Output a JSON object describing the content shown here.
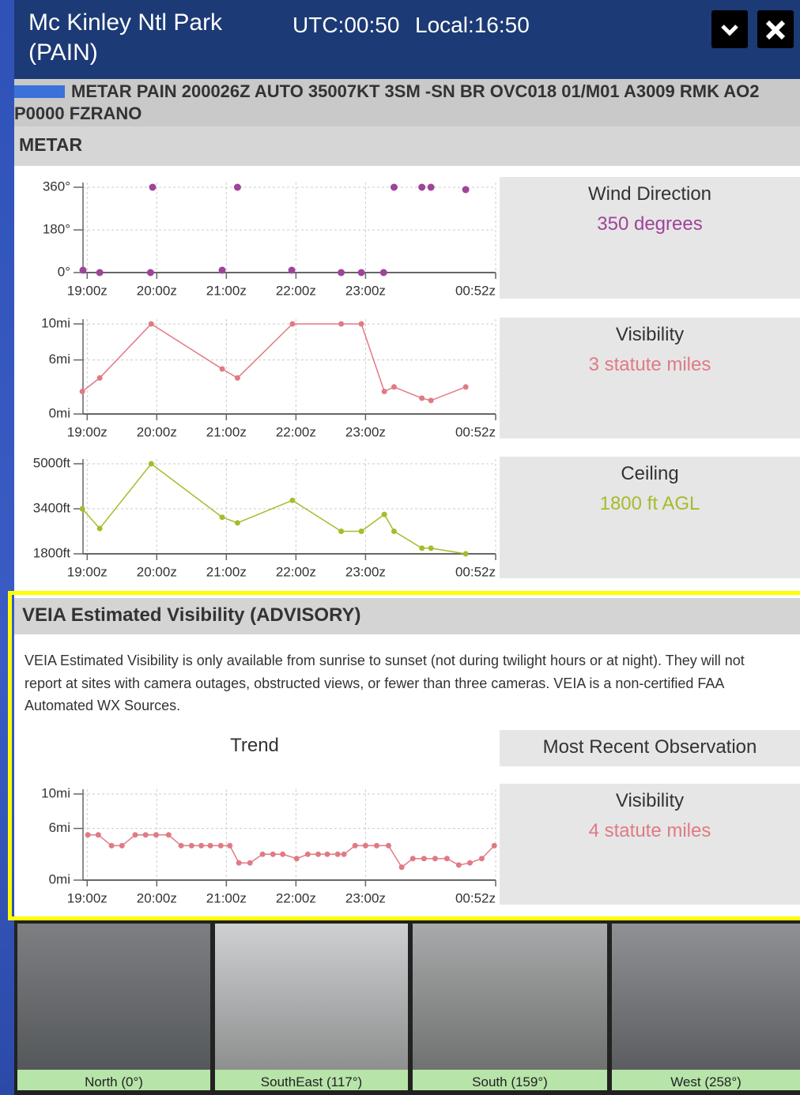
{
  "header": {
    "title": "Mc Kinley Ntl Park (PAIN)",
    "utc": "UTC:00:50",
    "local": "Local:16:50"
  },
  "metar_text": "METAR PAIN 200026Z AUTO 35007KT 3SM -SN BR OVC018 01/M01 A3009 RMK AO2 P0000 FZRANO",
  "metar_section": "METAR",
  "charts": [
    {
      "type": "scatter",
      "color": "#a0439a",
      "x": [
        18.94,
        19.18,
        19.91,
        19.94,
        20.94,
        21.16,
        21.94,
        22.65,
        22.94,
        23.26,
        23.41,
        23.81,
        23.94,
        24.44
      ],
      "values": [
        10,
        0,
        0,
        360,
        10,
        360,
        10,
        0,
        0,
        0,
        360,
        360,
        360,
        350
      ],
      "xlim": [
        18.94,
        24.87
      ],
      "ylim": [
        0,
        360
      ],
      "xticks": [
        {
          "value": 19,
          "label": "19:00z"
        },
        {
          "value": 20,
          "label": "20:00z"
        },
        {
          "value": 21,
          "label": "21:00z"
        },
        {
          "value": 22,
          "label": "22:00z"
        },
        {
          "value": 23,
          "label": "23:00z"
        },
        {
          "value": 24.87,
          "label": "00:52z"
        }
      ],
      "yticks": [
        {
          "value": 0,
          "label": "0°"
        },
        {
          "value": 180,
          "label": "180°"
        },
        {
          "value": 360,
          "label": "360°"
        }
      ],
      "grid": true,
      "panel": {
        "title": "Wind Direction",
        "value": "350 degrees"
      }
    },
    {
      "type": "line",
      "color": "#e07a85",
      "x": [
        18.93,
        19.18,
        19.92,
        20.94,
        21.16,
        21.95,
        22.65,
        22.94,
        23.27,
        23.41,
        23.81,
        23.94,
        24.44
      ],
      "values": [
        2.5,
        4,
        10,
        5,
        4,
        10,
        10,
        10,
        2.5,
        3,
        1.75,
        1.5,
        3
      ],
      "xlim": [
        18.94,
        24.87
      ],
      "ylim": [
        0,
        10
      ],
      "xticks": [
        {
          "value": 19,
          "label": "19:00z"
        },
        {
          "value": 20,
          "label": "20:00z"
        },
        {
          "value": 21,
          "label": "21:00z"
        },
        {
          "value": 22,
          "label": "22:00z"
        },
        {
          "value": 23,
          "label": "23:00z"
        },
        {
          "value": 24.87,
          "label": "00:52z"
        }
      ],
      "yticks": [
        {
          "value": 0,
          "label": "0mi"
        },
        {
          "value": 6,
          "label": "6mi"
        },
        {
          "value": 10,
          "label": "10mi"
        }
      ],
      "grid": true,
      "panel": {
        "title": "Visibility",
        "value": "3 statute miles"
      }
    },
    {
      "type": "line",
      "color": "#a8bb2b",
      "x": [
        18.93,
        19.18,
        19.92,
        20.94,
        21.16,
        21.95,
        22.65,
        22.94,
        23.27,
        23.41,
        23.81,
        23.94,
        24.44
      ],
      "values": [
        3400,
        2700,
        5000,
        3100,
        2900,
        3700,
        2600,
        2600,
        3200,
        2600,
        2000,
        2000,
        1800
      ],
      "xlim": [
        18.94,
        24.87
      ],
      "ylim": [
        1800,
        5000
      ],
      "xticks": [
        {
          "value": 19,
          "label": "19:00z"
        },
        {
          "value": 20,
          "label": "20:00z"
        },
        {
          "value": 21,
          "label": "21:00z"
        },
        {
          "value": 22,
          "label": "22:00z"
        },
        {
          "value": 23,
          "label": "23:00z"
        },
        {
          "value": 24.87,
          "label": "00:52z"
        }
      ],
      "yticks": [
        {
          "value": 1800,
          "label": "1800ft"
        },
        {
          "value": 3400,
          "label": "3400ft"
        },
        {
          "value": 5000,
          "label": "5000ft"
        }
      ],
      "grid": true,
      "panel": {
        "title": "Ceiling",
        "value": "1800 ft AGL"
      }
    },
    {
      "type": "line",
      "color": "#e07a85",
      "x": [
        19.01,
        19.16,
        19.35,
        19.5,
        19.69,
        19.84,
        19.99,
        20.17,
        20.35,
        20.5,
        20.64,
        20.77,
        20.92,
        21.05,
        21.18,
        21.34,
        21.52,
        21.67,
        21.81,
        22.01,
        22.17,
        22.32,
        22.45,
        22.6,
        22.69,
        22.85,
        23.0,
        23.16,
        23.33,
        23.52,
        23.68,
        23.84,
        24.0,
        24.17,
        24.34,
        24.5,
        24.67,
        24.85
      ],
      "values": [
        5.25,
        5.25,
        4,
        4,
        5.25,
        5.25,
        5.25,
        5.25,
        4,
        4,
        4,
        4,
        4,
        4,
        2,
        2,
        3,
        3,
        3,
        2.5,
        3,
        3,
        3,
        3,
        3,
        4,
        4,
        4,
        4,
        1.5,
        2.5,
        2.5,
        2.5,
        2.5,
        1.75,
        2,
        2.5,
        4
      ],
      "xlim": [
        18.94,
        24.87
      ],
      "ylim": [
        0,
        10
      ],
      "xticks": [
        {
          "value": 19,
          "label": "19:00z"
        },
        {
          "value": 20,
          "label": "20:00z"
        },
        {
          "value": 21,
          "label": "21:00z"
        },
        {
          "value": 22,
          "label": "22:00z"
        },
        {
          "value": 23,
          "label": "23:00z"
        },
        {
          "value": 24.87,
          "label": "00:52z"
        }
      ],
      "yticks": [
        {
          "value": 0,
          "label": "0mi"
        },
        {
          "value": 6,
          "label": "6mi"
        },
        {
          "value": 10,
          "label": "10mi"
        }
      ],
      "grid": true,
      "panel": {
        "title": "Visibility",
        "value": "4 statute miles"
      }
    }
  ],
  "veia": {
    "title": "VEIA Estimated Visibility (ADVISORY)",
    "description": "VEIA Estimated Visibility is only available from sunrise to sunset (not during twilight hours or at night). They will not report at sites with camera outages, obstructed views, or fewer than three cameras. VEIA is a non-certified FAA Automated WX Sources.",
    "trend": "Trend",
    "most_recent": "Most Recent Observation"
  },
  "cameras": [
    "North (0°)",
    "SouthEast (117°)",
    "South (159°)",
    "West (258°)"
  ]
}
